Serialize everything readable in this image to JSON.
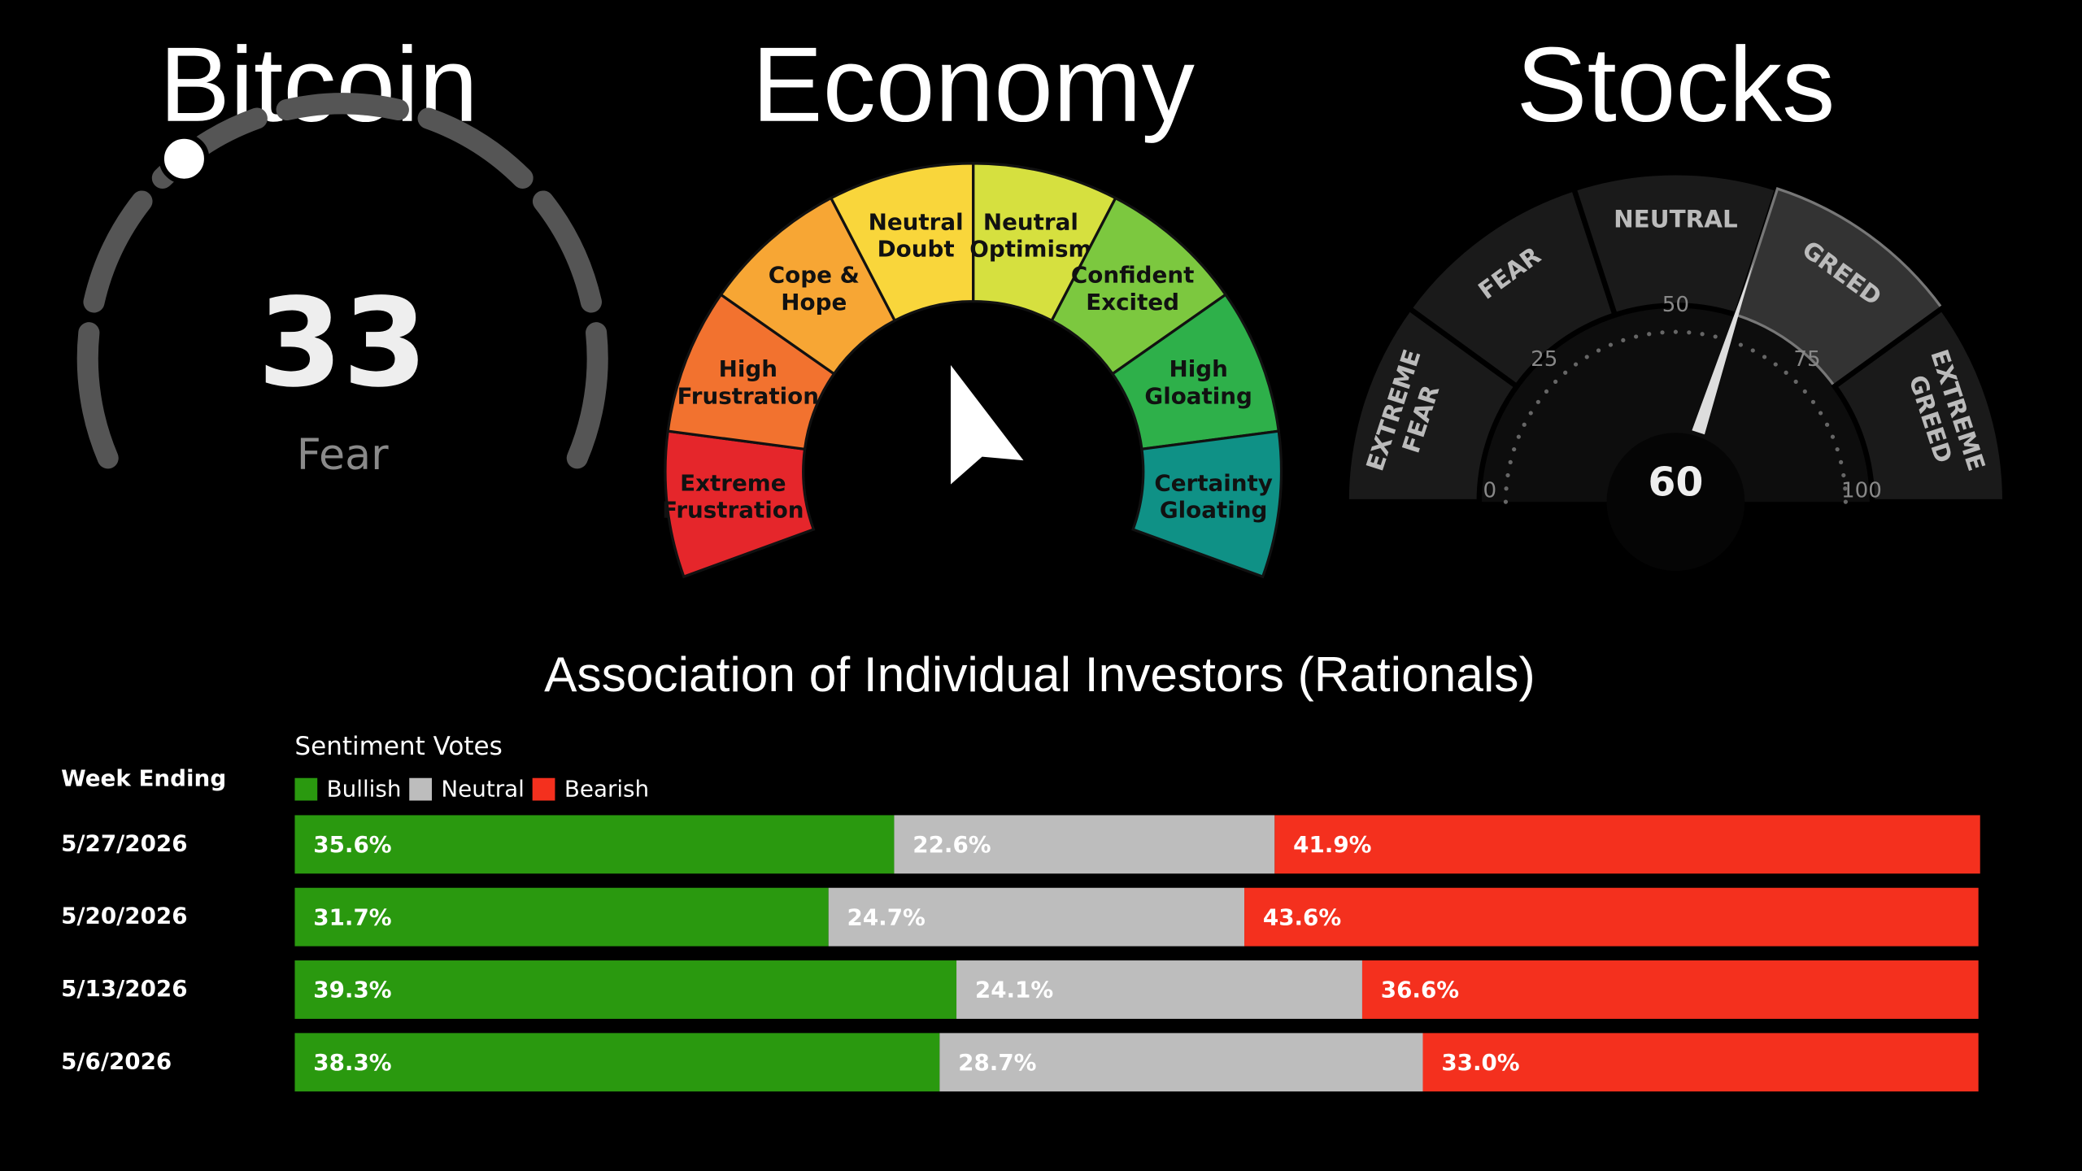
{
  "chart_data": [
    {
      "type": "dial",
      "title": "Bitcoin",
      "value": 33,
      "label": "Fear",
      "lim": [
        0,
        100
      ]
    },
    {
      "type": "zones",
      "title": "Economy",
      "zones": [
        {
          "name": "Extreme Frustration",
          "color": "#e5262b"
        },
        {
          "name": "High Frustration",
          "color": "#f2722f"
        },
        {
          "name": "Cope & Hope",
          "color": "#f7a634"
        },
        {
          "name": "Neutral Doubt",
          "color": "#f9d63b"
        },
        {
          "name": "Neutral Optimism",
          "color": "#d6e03f"
        },
        {
          "name": "Confident Excited",
          "color": "#7cc83f"
        },
        {
          "name": "High Gloating",
          "color": "#2eb04a"
        },
        {
          "name": "Certainty Gloating",
          "color": "#0f9186"
        }
      ]
    },
    {
      "type": "gauge",
      "title": "Stocks",
      "value": 60,
      "lim": [
        0,
        100
      ],
      "ticks": [
        0,
        25,
        50,
        75,
        100
      ],
      "zones": [
        {
          "name": "EXTREME FEAR",
          "color": "#1a1a1a"
        },
        {
          "name": "FEAR",
          "color": "#1a1a1a"
        },
        {
          "name": "NEUTRAL",
          "color": "#1a1a1a"
        },
        {
          "name": "GREED",
          "color": "#333333"
        },
        {
          "name": "EXTREME GREED",
          "color": "#1a1a1a"
        }
      ]
    },
    {
      "type": "bar",
      "orientation": "horizontal",
      "stacked": true,
      "title": "Association of Individual Investors (Rationals)",
      "subtitle": "Sentiment Votes",
      "category_label": "Week Ending",
      "categories": [
        "5/27/2026",
        "5/20/2026",
        "5/13/2026",
        "5/6/2026"
      ],
      "xlim": [
        0,
        100
      ],
      "series": [
        {
          "name": "Bullish",
          "color": "#2a990f",
          "values": [
            35.6,
            31.7,
            39.3,
            38.3
          ],
          "value_labels": [
            "35.6%",
            "31.7%",
            "39.3%",
            "38.3%"
          ]
        },
        {
          "name": "Neutral",
          "color": "#bdbdbd",
          "values": [
            22.6,
            24.7,
            24.1,
            28.7
          ],
          "value_labels": [
            "22.6%",
            "24.7%",
            "24.1%",
            "28.7%"
          ]
        },
        {
          "name": "Bearish",
          "color": "#f4301e",
          "values": [
            41.9,
            43.6,
            36.6,
            33.0
          ],
          "value_labels": [
            "41.9%",
            "43.6%",
            "36.6%",
            "33.0%"
          ]
        }
      ]
    }
  ]
}
